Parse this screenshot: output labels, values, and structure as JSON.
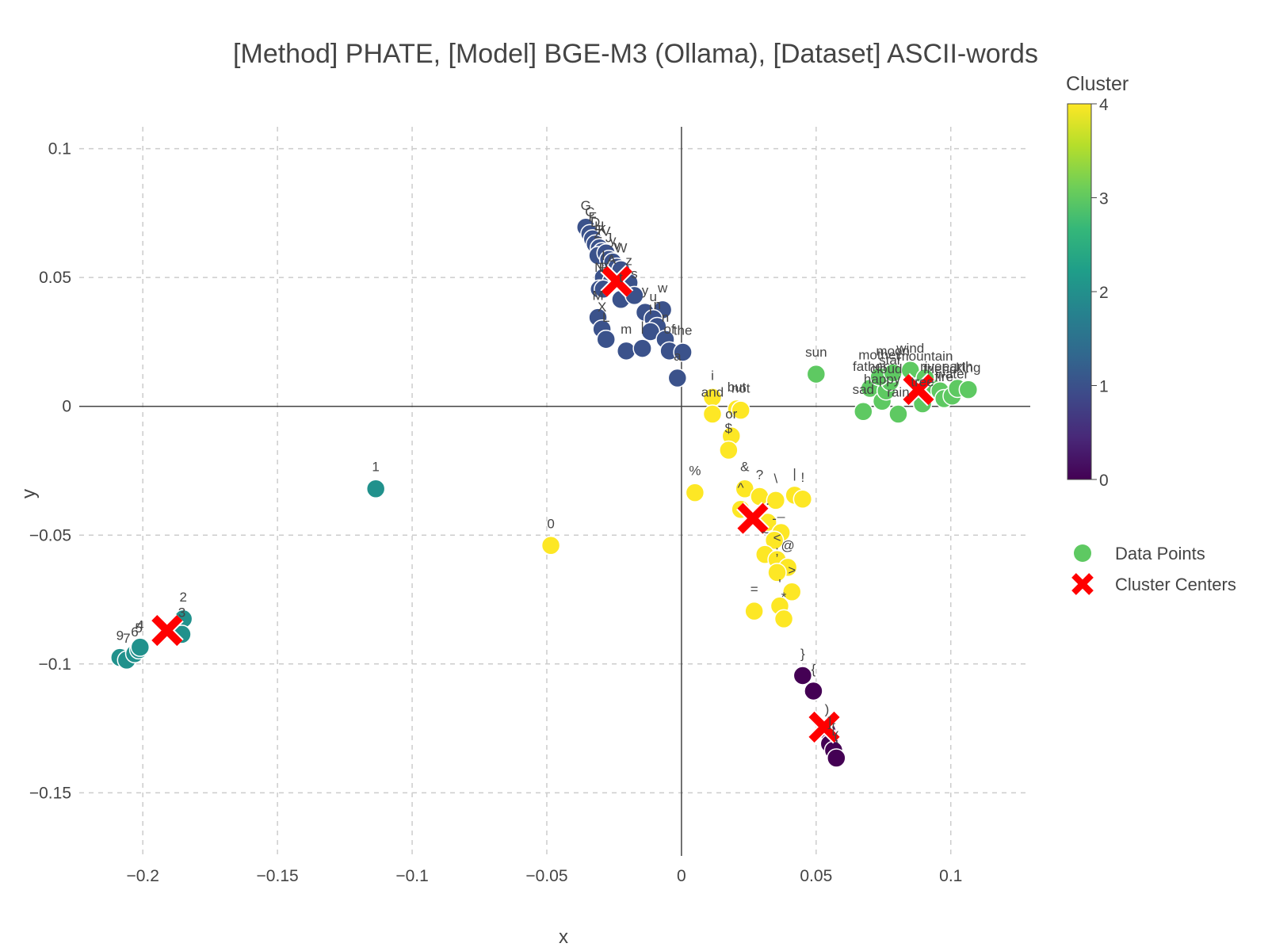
{
  "chart_data": {
    "type": "scatter",
    "title": "[Method] PHATE, [Model] BGE-M3 (Ollama), [Dataset] ASCII-words",
    "xlabel": "x",
    "ylabel": "y",
    "xlim": [
      -0.2236,
      0.1295
    ],
    "ylim": [
      -0.1745,
      0.1085
    ],
    "x_ticks": [
      {
        "v": -0.2,
        "label": "−0.2"
      },
      {
        "v": -0.15,
        "label": "−0.15"
      },
      {
        "v": -0.1,
        "label": "−0.1"
      },
      {
        "v": -0.05,
        "label": "−0.05"
      },
      {
        "v": 0,
        "label": "0"
      },
      {
        "v": 0.05,
        "label": "0.05"
      },
      {
        "v": 0.1,
        "label": "0.1"
      }
    ],
    "y_ticks": [
      {
        "v": 0.1,
        "label": "0.1"
      },
      {
        "v": 0.05,
        "label": "0.05"
      },
      {
        "v": 0,
        "label": "0"
      },
      {
        "v": -0.05,
        "label": "−0.05"
      },
      {
        "v": -0.1,
        "label": "−0.1"
      },
      {
        "v": -0.15,
        "label": "−0.15"
      }
    ],
    "grid": true,
    "zero_lines": true,
    "colorscale": "viridis",
    "colors": {
      "cluster_0": "#440154",
      "cluster_1": "#3b528b",
      "cluster_2": "#21918c",
      "cluster_3": "#5ec962",
      "cluster_4": "#fde725",
      "centers": "#ff0000"
    },
    "colorbar": {
      "title": "Cluster",
      "range": [
        0,
        4
      ],
      "ticks": [
        {
          "v": 0,
          "label": "0"
        },
        {
          "v": 1,
          "label": "1"
        },
        {
          "v": 2,
          "label": "2"
        },
        {
          "v": 3,
          "label": "3"
        },
        {
          "v": 4,
          "label": "4"
        }
      ]
    },
    "legend": {
      "placement": "right",
      "entries": [
        "Data Points",
        "Cluster Centers"
      ]
    },
    "series": [
      {
        "name": "Data Points",
        "points": [
          {
            "x": -0.1135,
            "y": -0.032,
            "c": 2,
            "label": "1"
          },
          {
            "x": -0.2085,
            "y": -0.0975,
            "c": 2,
            "label": "9"
          },
          {
            "x": -0.206,
            "y": -0.0985,
            "c": 2,
            "label": "7"
          },
          {
            "x": -0.203,
            "y": -0.096,
            "c": 2,
            "label": "6"
          },
          {
            "x": -0.2015,
            "y": -0.0945,
            "c": 2,
            "label": "5"
          },
          {
            "x": -0.201,
            "y": -0.0935,
            "c": 2,
            "label": "4"
          },
          {
            "x": -0.185,
            "y": -0.0825,
            "c": 2,
            "label": "2"
          },
          {
            "x": -0.1855,
            "y": -0.0885,
            "c": 2,
            "label": "3"
          },
          {
            "x": -0.0485,
            "y": -0.054,
            "c": 4,
            "label": "0"
          },
          {
            "x": 0.005,
            "y": -0.0335,
            "c": 4,
            "label": "%"
          },
          {
            "x": 0.0115,
            "y": 0.0035,
            "c": 4,
            "label": "i"
          },
          {
            "x": 0.0115,
            "y": -0.003,
            "c": 4,
            "label": "and"
          },
          {
            "x": 0.0205,
            "y": -0.001,
            "c": 4,
            "label": "but"
          },
          {
            "x": 0.022,
            "y": -0.0015,
            "c": 4,
            "label": "not"
          },
          {
            "x": 0.0185,
            "y": -0.0115,
            "c": 4,
            "label": "or"
          },
          {
            "x": 0.0175,
            "y": -0.017,
            "c": 4,
            "label": "$"
          },
          {
            "x": 0.0235,
            "y": -0.032,
            "c": 4,
            "label": "&"
          },
          {
            "x": 0.022,
            "y": -0.04,
            "c": 4,
            "label": "^"
          },
          {
            "x": 0.029,
            "y": -0.035,
            "c": 4,
            "label": "?"
          },
          {
            "x": 0.035,
            "y": -0.0365,
            "c": 4,
            "label": "\\"
          },
          {
            "x": 0.042,
            "y": -0.0345,
            "c": 4,
            "label": "|"
          },
          {
            "x": 0.045,
            "y": -0.036,
            "c": 4,
            "label": "!"
          },
          {
            "x": 0.032,
            "y": -0.045,
            "c": 4,
            "label": "."
          },
          {
            "x": 0.037,
            "y": -0.049,
            "c": 4,
            "label": "_"
          },
          {
            "x": 0.0345,
            "y": -0.052,
            "c": 4,
            "label": "-"
          },
          {
            "x": 0.031,
            "y": -0.0575,
            "c": 4,
            "label": "~"
          },
          {
            "x": 0.0355,
            "y": -0.0595,
            "c": 4,
            "label": "<"
          },
          {
            "x": 0.0395,
            "y": -0.0625,
            "c": 4,
            "label": "@"
          },
          {
            "x": 0.0355,
            "y": -0.0645,
            "c": 4,
            "label": ";"
          },
          {
            "x": 0.041,
            "y": -0.072,
            "c": 4,
            "label": ">"
          },
          {
            "x": 0.027,
            "y": -0.0795,
            "c": 4,
            "label": "="
          },
          {
            "x": 0.0365,
            "y": -0.0775,
            "c": 4,
            "label": "'"
          },
          {
            "x": 0.038,
            "y": -0.0825,
            "c": 4,
            "label": "*"
          },
          {
            "x": 0.045,
            "y": -0.1045,
            "c": 0,
            "label": "}"
          },
          {
            "x": 0.049,
            "y": -0.1105,
            "c": 0,
            "label": "{"
          },
          {
            "x": 0.054,
            "y": -0.126,
            "c": 0,
            "label": ")"
          },
          {
            "x": 0.055,
            "y": -0.131,
            "c": 0,
            "label": "]"
          },
          {
            "x": 0.0565,
            "y": -0.1335,
            "c": 0,
            "label": "["
          },
          {
            "x": 0.0575,
            "y": -0.1365,
            "c": 0,
            "label": "("
          },
          {
            "x": -0.0355,
            "y": 0.0695,
            "c": 1,
            "label": "G"
          },
          {
            "x": -0.034,
            "y": 0.067,
            "c": 1,
            "label": "C"
          },
          {
            "x": -0.033,
            "y": 0.065,
            "c": 1,
            "label": "F"
          },
          {
            "x": -0.032,
            "y": 0.063,
            "c": 1,
            "label": "D"
          },
          {
            "x": -0.0305,
            "y": 0.0615,
            "c": 1,
            "label": "H"
          },
          {
            "x": -0.0295,
            "y": 0.06,
            "c": 1,
            "label": "K"
          },
          {
            "x": -0.031,
            "y": 0.0585,
            "c": 1,
            "label": "Z"
          },
          {
            "x": -0.028,
            "y": 0.0595,
            "c": 1,
            "label": "V"
          },
          {
            "x": -0.027,
            "y": 0.057,
            "c": 1,
            "label": "J"
          },
          {
            "x": -0.0255,
            "y": 0.056,
            "c": 1,
            "label": "y"
          },
          {
            "x": -0.024,
            "y": 0.054,
            "c": 1,
            "label": "v"
          },
          {
            "x": -0.0225,
            "y": 0.053,
            "c": 1,
            "label": "W"
          },
          {
            "x": -0.029,
            "y": 0.05,
            "c": 1,
            "label": "I"
          },
          {
            "x": -0.026,
            "y": 0.0485,
            "c": 1,
            "label": "A"
          },
          {
            "x": -0.0195,
            "y": 0.048,
            "c": 1,
            "label": "z"
          },
          {
            "x": -0.0305,
            "y": 0.0455,
            "c": 1,
            "label": "N"
          },
          {
            "x": -0.029,
            "y": 0.0455,
            "c": 1,
            "label": "P"
          },
          {
            "x": -0.0225,
            "y": 0.0415,
            "c": 1,
            "label": "t"
          },
          {
            "x": -0.0175,
            "y": 0.043,
            "c": 1,
            "label": "s"
          },
          {
            "x": -0.0135,
            "y": 0.0365,
            "c": 1,
            "label": "y"
          },
          {
            "x": -0.007,
            "y": 0.0375,
            "c": 1,
            "label": "w"
          },
          {
            "x": -0.0105,
            "y": 0.034,
            "c": 1,
            "label": "u"
          },
          {
            "x": -0.009,
            "y": 0.031,
            "c": 1,
            "label": "n"
          },
          {
            "x": -0.0115,
            "y": 0.029,
            "c": 1,
            "label": "l"
          },
          {
            "x": -0.006,
            "y": 0.026,
            "c": 1,
            "label": "n"
          },
          {
            "x": -0.031,
            "y": 0.0345,
            "c": 1,
            "label": "M"
          },
          {
            "x": -0.0295,
            "y": 0.03,
            "c": 1,
            "label": "X"
          },
          {
            "x": -0.028,
            "y": 0.026,
            "c": 1,
            "label": "L"
          },
          {
            "x": -0.0205,
            "y": 0.0215,
            "c": 1,
            "label": "m"
          },
          {
            "x": -0.0145,
            "y": 0.0225,
            "c": 1,
            "label": "|"
          },
          {
            "x": -0.0045,
            "y": 0.0215,
            "c": 1,
            "label": "of"
          },
          {
            "x": 0.0005,
            "y": 0.021,
            "c": 1,
            "label": "the"
          },
          {
            "x": -0.0015,
            "y": 0.011,
            "c": 1,
            "label": "a"
          },
          {
            "x": 0.05,
            "y": 0.0125,
            "c": 3,
            "label": "sun"
          },
          {
            "x": 0.0675,
            "y": -0.002,
            "c": 3,
            "label": "sad"
          },
          {
            "x": 0.07,
            "y": 0.007,
            "c": 3,
            "label": "father"
          },
          {
            "x": 0.0745,
            "y": 0.002,
            "c": 3,
            "label": "happy"
          },
          {
            "x": 0.076,
            "y": 0.006,
            "c": 3,
            "label": "cloud"
          },
          {
            "x": 0.0805,
            "y": -0.003,
            "c": 3,
            "label": "rain"
          },
          {
            "x": 0.0775,
            "y": 0.0095,
            "c": 3,
            "label": "star"
          },
          {
            "x": 0.0735,
            "y": 0.0115,
            "c": 3,
            "label": "mother"
          },
          {
            "x": 0.0785,
            "y": 0.013,
            "c": 3,
            "label": "moon"
          },
          {
            "x": 0.085,
            "y": 0.014,
            "c": 3,
            "label": "wind"
          },
          {
            "x": 0.0895,
            "y": 0.001,
            "c": 3,
            "label": "tree"
          },
          {
            "x": 0.0905,
            "y": 0.011,
            "c": 3,
            "label": "mountain"
          },
          {
            "x": 0.0935,
            "y": 0.007,
            "c": 3,
            "label": "river"
          },
          {
            "x": 0.096,
            "y": 0.006,
            "c": 3,
            "label": "friend"
          },
          {
            "x": 0.0975,
            "y": 0.003,
            "c": 3,
            "label": "fire"
          },
          {
            "x": 0.1005,
            "y": 0.004,
            "c": 3,
            "label": "water"
          },
          {
            "x": 0.1025,
            "y": 0.007,
            "c": 3,
            "label": "earth"
          },
          {
            "x": 0.1065,
            "y": 0.0065,
            "c": 3,
            "label": "king"
          }
        ]
      },
      {
        "name": "Cluster Centers",
        "points": [
          {
            "x": -0.024,
            "y": 0.0485,
            "c": 1
          },
          {
            "x": 0.088,
            "y": 0.0065,
            "c": 3
          },
          {
            "x": -0.191,
            "y": -0.087,
            "c": 2
          },
          {
            "x": 0.0265,
            "y": -0.0435,
            "c": 4
          },
          {
            "x": 0.053,
            "y": -0.1245,
            "c": 0
          }
        ]
      }
    ]
  }
}
